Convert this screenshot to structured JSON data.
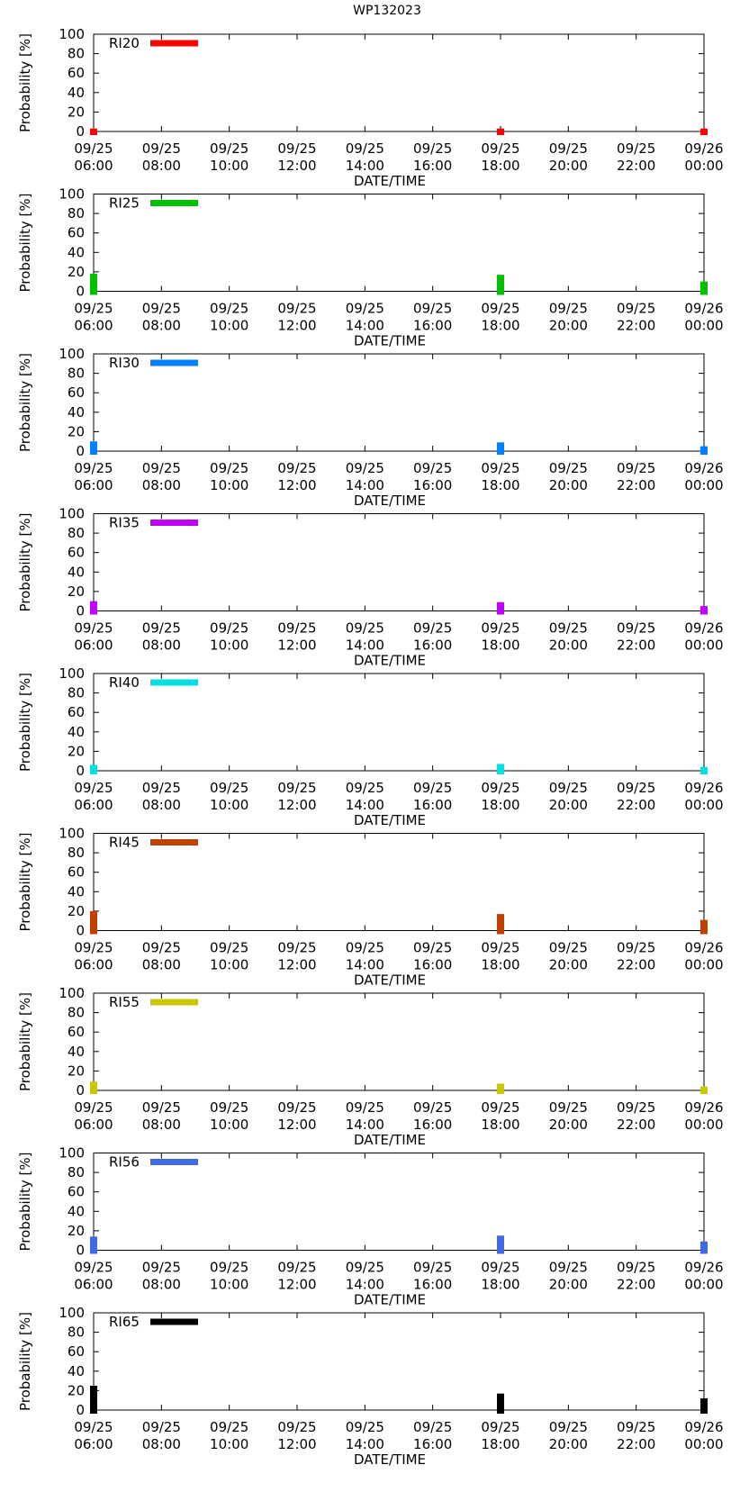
{
  "title": "WP132023",
  "chart_data": {
    "type": "bar",
    "title": "WP132023",
    "xlabel": "DATE/TIME",
    "ylabel": "Probability [%]",
    "ylim": [
      0,
      100
    ],
    "yticks": [
      0,
      20,
      40,
      60,
      80,
      100
    ],
    "x_range_hours": [
      0,
      18
    ],
    "xticks": [
      {
        "hour": 0,
        "date": "09/25",
        "time": "06:00"
      },
      {
        "hour": 2,
        "date": "09/25",
        "time": "08:00"
      },
      {
        "hour": 4,
        "date": "09/25",
        "time": "10:00"
      },
      {
        "hour": 6,
        "date": "09/25",
        "time": "12:00"
      },
      {
        "hour": 8,
        "date": "09/25",
        "time": "14:00"
      },
      {
        "hour": 10,
        "date": "09/25",
        "time": "16:00"
      },
      {
        "hour": 12,
        "date": "09/25",
        "time": "18:00"
      },
      {
        "hour": 14,
        "date": "09/25",
        "time": "20:00"
      },
      {
        "hour": 16,
        "date": "09/25",
        "time": "22:00"
      },
      {
        "hour": 18,
        "date": "09/26",
        "time": "00:00"
      }
    ],
    "x_hours": [
      0,
      12,
      18
    ],
    "legend_position": "top-left",
    "series": [
      {
        "name": "RI20",
        "color": "#ff0000",
        "values": [
          3,
          3,
          3
        ]
      },
      {
        "name": "RI25",
        "color": "#00c000",
        "values": [
          18,
          17,
          10
        ]
      },
      {
        "name": "RI30",
        "color": "#0080ff",
        "values": [
          10,
          9,
          5
        ]
      },
      {
        "name": "RI35",
        "color": "#c000ff",
        "values": [
          10,
          9,
          5
        ]
      },
      {
        "name": "RI40",
        "color": "#00e0e0",
        "values": [
          6,
          7,
          4
        ]
      },
      {
        "name": "RI45",
        "color": "#c04000",
        "values": [
          20,
          17,
          11
        ]
      },
      {
        "name": "RI55",
        "color": "#c8c800",
        "values": [
          9,
          7,
          4
        ]
      },
      {
        "name": "RI56",
        "color": "#4169e1",
        "values": [
          14,
          15,
          9
        ]
      },
      {
        "name": "RI65",
        "color": "#000000",
        "values": [
          25,
          17,
          12
        ]
      }
    ]
  }
}
